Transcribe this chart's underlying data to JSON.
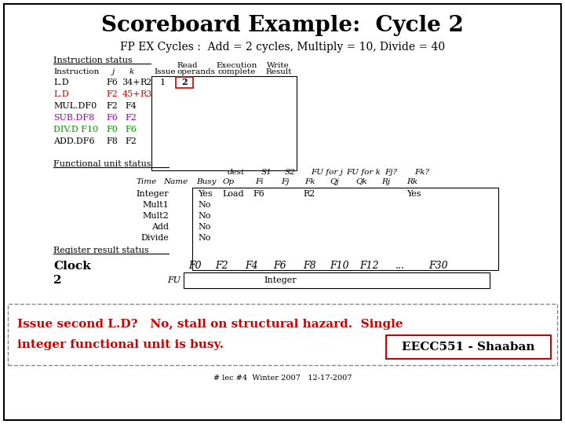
{
  "title": "Scoreboard Example:  Cycle 2",
  "subtitle": "FP EX Cycles :  Add = 2 cycles, Multiply = 10, Divide = 40",
  "bg_color": "#ffffff",
  "border_color": "#000000",
  "instruction_status_rows": [
    {
      "instr": "L.D",
      "j": "F6",
      "k": "34+",
      "extra": "R2",
      "issue": "1",
      "read": "2",
      "highlight_read": true,
      "color": "#000000"
    },
    {
      "instr": "L.D",
      "j": "F2",
      "k": "45+",
      "extra": "R3",
      "issue": "",
      "read": "",
      "highlight_read": false,
      "color": "#cc0000"
    },
    {
      "instr": "MUL.DF0",
      "j": "F2",
      "k": "F4",
      "extra": "",
      "issue": "",
      "read": "",
      "highlight_read": false,
      "color": "#000000"
    },
    {
      "instr": "SUB.DF8",
      "j": "F6",
      "k": "F2",
      "extra": "",
      "issue": "",
      "read": "",
      "highlight_read": false,
      "color": "#9900cc"
    },
    {
      "instr": "DIV.D F10",
      "j": "F0",
      "k": "F6",
      "extra": "",
      "issue": "",
      "read": "",
      "highlight_read": false,
      "color": "#009900"
    },
    {
      "instr": "ADD.DF6",
      "j": "F8",
      "k": "F2",
      "extra": "",
      "issue": "",
      "read": "",
      "highlight_read": false,
      "color": "#000000"
    }
  ],
  "fu_rows": [
    {
      "name": "Integer",
      "busy": "Yes",
      "op": "Load",
      "fi": "F6",
      "fj": "",
      "fk": "R2",
      "qj": "",
      "qk": "",
      "rj": "",
      "rk": "Yes"
    },
    {
      "name": "Mult1",
      "busy": "No",
      "op": "",
      "fi": "",
      "fj": "",
      "fk": "",
      "qj": "",
      "qk": "",
      "rj": "",
      "rk": ""
    },
    {
      "name": "Mult2",
      "busy": "No",
      "op": "",
      "fi": "",
      "fj": "",
      "fk": "",
      "qj": "",
      "qk": "",
      "rj": "",
      "rk": ""
    },
    {
      "name": "Add",
      "busy": "No",
      "op": "",
      "fi": "",
      "fj": "",
      "fk": "",
      "qj": "",
      "qk": "",
      "rj": "",
      "rk": ""
    },
    {
      "name": "Divide",
      "busy": "No",
      "op": "",
      "fi": "",
      "fj": "",
      "fk": "",
      "qj": "",
      "qk": "",
      "rj": "",
      "rk": ""
    }
  ],
  "registers": [
    "F0",
    "F2",
    "F4",
    "F6",
    "F8",
    "F10",
    "F12",
    "...",
    "F30"
  ],
  "reg_values": [
    "",
    "",
    "",
    "Integer",
    "",
    "",
    "",
    "",
    ""
  ],
  "clock_value": "2",
  "bottom_line1": "Issue second L.D?   No, stall on structural hazard.  Single",
  "bottom_line2": "integer functional unit is busy.",
  "bottom_note_color": "#cc0000",
  "watermark": "EECC551 - Shaaban",
  "footnote": "# lec #4  Winter 2007   12-17-2007"
}
